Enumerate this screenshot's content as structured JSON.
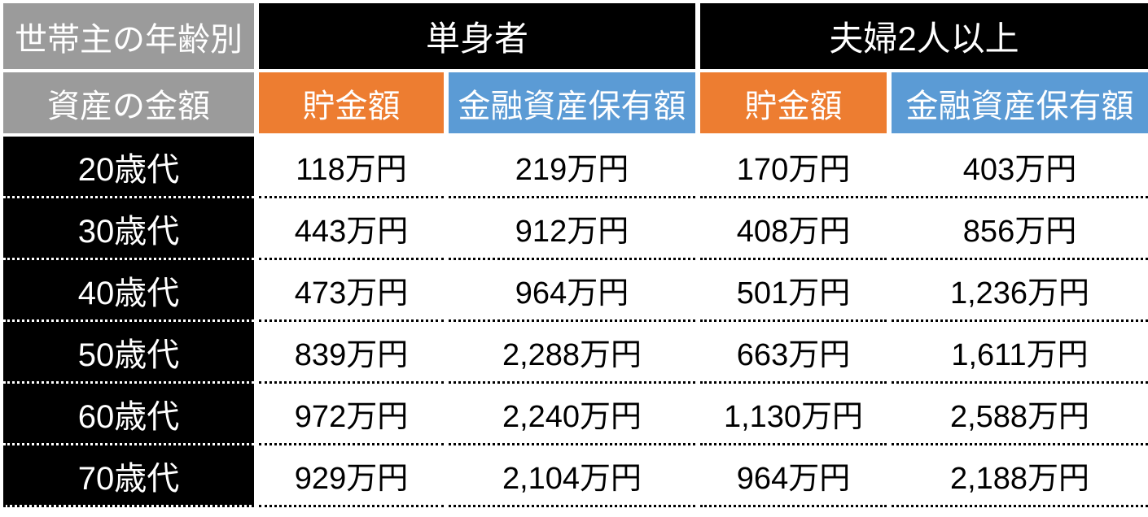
{
  "table": {
    "corner": {
      "row1": "世帯主の年齢別",
      "row2": "資産の金額"
    },
    "groups": {
      "single": "単身者",
      "couple": "夫婦2人以上"
    },
    "sub_headers": {
      "savings_single": "貯金額",
      "assets_single": "金融資産保有額",
      "savings_couple": "貯金額",
      "assets_couple": "金融資産保有額"
    },
    "rows": [
      {
        "age": "20歳代",
        "values": [
          "118万円",
          "219万円",
          "170万円",
          "403万円"
        ]
      },
      {
        "age": "30歳代",
        "values": [
          "443万円",
          "912万円",
          "408万円",
          "856万円"
        ]
      },
      {
        "age": "40歳代",
        "values": [
          "473万円",
          "964万円",
          "501万円",
          "1,236万円"
        ]
      },
      {
        "age": "50歳代",
        "values": [
          "839万円",
          "2,288万円",
          "663万円",
          "1,611万円"
        ]
      },
      {
        "age": "60歳代",
        "values": [
          "972万円",
          "2,240万円",
          "1,130万円",
          "2,588万円"
        ]
      },
      {
        "age": "70歳代",
        "values": [
          "929万円",
          "2,104万円",
          "964万円",
          "2,188万円"
        ]
      }
    ],
    "colors": {
      "gray_header": "#9B9B9B",
      "black_header": "#000000",
      "orange_subheader": "#ED7D31",
      "blue_subheader": "#5B9BD5",
      "header_text": "#FFFFFF",
      "data_text": "#000000"
    }
  },
  "chart_data": {
    "type": "table",
    "title": "世帯主の年齢別 資産の金額（単身者・夫婦2人以上）",
    "unit": "万円",
    "column_groups": [
      "単身者",
      "夫婦2人以上"
    ],
    "columns": [
      "世帯主の年齢別 資産の金額",
      "単身者 貯金額",
      "単身者 金融資産保有額",
      "夫婦2人以上 貯金額",
      "夫婦2人以上 金融資産保有額"
    ],
    "categories": [
      "20歳代",
      "30歳代",
      "40歳代",
      "50歳代",
      "60歳代",
      "70歳代"
    ],
    "series": [
      {
        "name": "単身者 貯金額",
        "values": [
          118,
          443,
          473,
          839,
          972,
          929
        ]
      },
      {
        "name": "単身者 金融資産保有額",
        "values": [
          219,
          912,
          964,
          2288,
          2240,
          2104
        ]
      },
      {
        "name": "夫婦2人以上 貯金額",
        "values": [
          170,
          408,
          501,
          663,
          1130,
          964
        ]
      },
      {
        "name": "夫婦2人以上 金融資産保有額",
        "values": [
          403,
          856,
          1236,
          1611,
          2588,
          2188
        ]
      }
    ]
  }
}
